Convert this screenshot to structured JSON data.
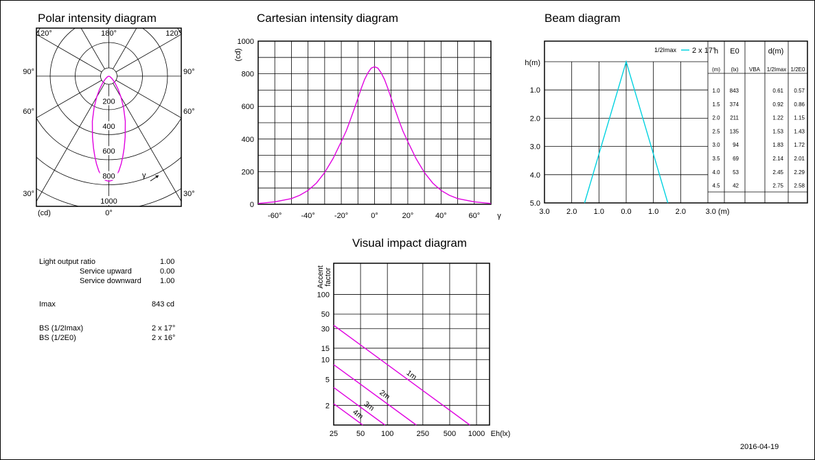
{
  "page": {
    "date": "2016-04-19"
  },
  "polar": {
    "title": "Polar intensity diagram",
    "top_left_angle": "120°",
    "top_center_angle": "180°",
    "top_right_angle": "120°",
    "left_angles": [
      "90°",
      "60°",
      "30°"
    ],
    "right_angles": [
      "90°",
      "60°",
      "30°"
    ],
    "bottom_unit": "(cd)",
    "bottom_angle": "0°",
    "gamma": "γ",
    "ring_labels": [
      "200",
      "400",
      "600",
      "800",
      "1000"
    ]
  },
  "summary": {
    "light_output_ratio_label": "Light output ratio",
    "light_output_ratio_value": "1.00",
    "service_upward_label": "Service upward",
    "service_upward_value": "0.00",
    "service_downward_label": "Service downward",
    "service_downward_value": "1.00",
    "imax_label": "Imax",
    "imax_value": "843 cd",
    "bs_imax_label": "BS (1/2Imax)",
    "bs_imax_value": "2 x 17°",
    "bs_e0_label": "BS (1/2E0)",
    "bs_e0_value": "2 x 16°"
  },
  "colors": {
    "curve": "#e000e0",
    "beam": "#00d2e0",
    "grid": "#000000"
  },
  "chart_data": [
    {
      "id": "cartesian",
      "type": "line",
      "title": "Cartesian intensity diagram",
      "ylabel": "(cd)",
      "xlabel": "γ",
      "xlim": [
        -70,
        70
      ],
      "ylim": [
        0,
        1000
      ],
      "x_ticks": [
        "-60°",
        "-40°",
        "-20°",
        "0°",
        "20°",
        "40°",
        "60°"
      ],
      "y_ticks": [
        "0",
        "200",
        "400",
        "600",
        "800",
        "1000"
      ],
      "grid": true,
      "series": [
        {
          "x": [
            -70,
            -60,
            -50,
            -45,
            -40,
            -35,
            -30,
            -25,
            -20,
            -17,
            -15,
            -12,
            -10,
            -8,
            -6,
            -4,
            -2,
            0,
            2,
            4,
            6,
            8,
            10,
            12,
            15,
            17,
            20,
            25,
            30,
            35,
            40,
            45,
            50,
            60,
            70
          ],
          "y": [
            5,
            15,
            35,
            55,
            85,
            130,
            195,
            280,
            385,
            450,
            505,
            590,
            650,
            710,
            765,
            805,
            835,
            843,
            835,
            805,
            765,
            710,
            650,
            590,
            505,
            450,
            385,
            280,
            195,
            130,
            85,
            55,
            35,
            15,
            5
          ]
        }
      ]
    },
    {
      "id": "polar-chart",
      "type": "line",
      "title": "Polar intensity diagram",
      "ylim": [
        0,
        1000
      ],
      "series": [
        {
          "x": [
            -70,
            -60,
            -50,
            -45,
            -40,
            -35,
            -30,
            -25,
            -20,
            -17,
            -15,
            -12,
            -10,
            -8,
            -6,
            -4,
            -2,
            0,
            2,
            4,
            6,
            8,
            10,
            12,
            15,
            17,
            20,
            25,
            30,
            35,
            40,
            45,
            50,
            60,
            70
          ],
          "y": [
            5,
            15,
            35,
            55,
            85,
            130,
            195,
            280,
            385,
            450,
            505,
            590,
            650,
            710,
            765,
            805,
            835,
            843,
            835,
            805,
            765,
            710,
            650,
            590,
            505,
            450,
            385,
            280,
            195,
            130,
            85,
            55,
            35,
            15,
            5
          ]
        }
      ]
    },
    {
      "id": "beam",
      "type": "line",
      "title": "Beam diagram",
      "ylabel": "h(m)",
      "x_ticks": [
        "3.0",
        "2.0",
        "1.0",
        "0.0",
        "1.0",
        "2.0",
        "3.0 (m)"
      ],
      "y_ticks": [
        "1.0",
        "2.0",
        "3.0",
        "4.0",
        "5.0"
      ],
      "xlim": [
        -3,
        3
      ],
      "ylim": [
        0,
        5
      ],
      "legend": "2 x 17°",
      "legend_label": "1/2Imax",
      "beam_half_angle": 17,
      "beam_apex": [
        0,
        0
      ],
      "table": {
        "headers": [
          "h",
          "E0",
          "d(m)"
        ],
        "subheaders": [
          "(m)",
          "(lx)",
          "VBA",
          "1/2Imax",
          "1/2E0"
        ],
        "rows": [
          [
            "1.0",
            "843",
            "",
            "0.61",
            "0.57"
          ],
          [
            "1.5",
            "374",
            "",
            "0.92",
            "0.86"
          ],
          [
            "2.0",
            "211",
            "",
            "1.22",
            "1.15"
          ],
          [
            "2.5",
            "135",
            "",
            "1.53",
            "1.43"
          ],
          [
            "3.0",
            "94",
            "",
            "1.83",
            "1.72"
          ],
          [
            "3.5",
            "69",
            "",
            "2.14",
            "2.01"
          ],
          [
            "4.0",
            "53",
            "",
            "2.45",
            "2.29"
          ],
          [
            "4.5",
            "42",
            "",
            "2.75",
            "2.58"
          ]
        ]
      }
    },
    {
      "id": "visual",
      "type": "line",
      "title": "Visual impact diagram",
      "ylabel": "Accent factor",
      "xlabel": "Eh(lx)",
      "x_ticks": [
        "25",
        "50",
        "100",
        "250",
        "500",
        "1000"
      ],
      "y_ticks": [
        "2",
        "5",
        "10",
        "15",
        "30",
        "50",
        "100"
      ],
      "series": [
        {
          "name": "1m",
          "x": [
            25,
            843
          ],
          "y": [
            33.7,
            1
          ]
        },
        {
          "name": "2m",
          "x": [
            25,
            211
          ],
          "y": [
            8.4,
            1
          ]
        },
        {
          "name": "3m",
          "x": [
            25,
            94
          ],
          "y": [
            3.76,
            1
          ]
        },
        {
          "name": "4m",
          "x": [
            25,
            53
          ],
          "y": [
            2.12,
            1
          ]
        }
      ]
    }
  ]
}
